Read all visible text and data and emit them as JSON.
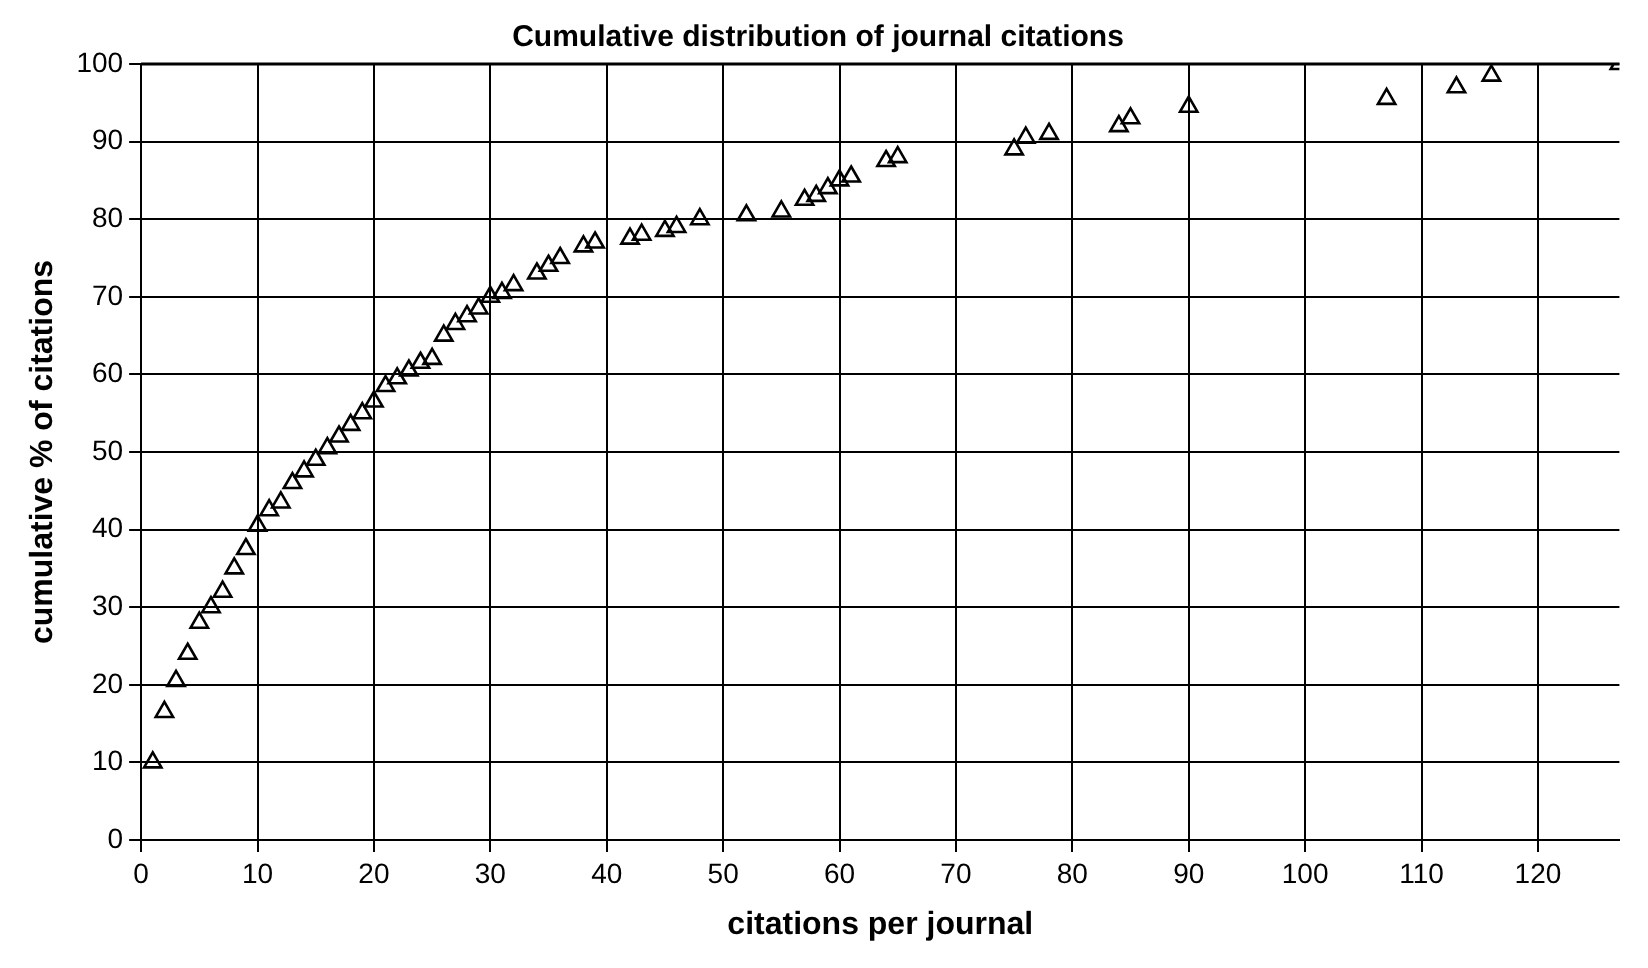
{
  "chart_data": {
    "type": "scatter",
    "title": "Cumulative distribution of journal citations",
    "xlabel": "citations per journal",
    "ylabel": "cumulative % of citations",
    "series": [
      {
        "color": "#000000",
        "x": [
          1,
          2,
          3,
          4,
          5,
          6,
          7,
          8,
          9,
          10,
          11,
          12,
          13,
          14,
          15,
          16,
          17,
          18,
          19,
          20,
          21,
          22,
          23,
          24,
          25,
          26,
          27,
          28,
          29,
          30,
          31,
          32,
          34,
          35,
          36,
          38,
          39,
          42,
          43,
          45,
          46,
          48,
          52,
          55,
          57,
          58,
          59,
          60,
          61,
          64,
          65,
          75,
          76,
          78,
          84,
          85,
          90,
          107,
          113,
          116,
          127
        ],
        "values": [
          10,
          16.5,
          20.5,
          24,
          28,
          30,
          32,
          35,
          37.5,
          40.5,
          42.5,
          43.5,
          46,
          47.5,
          49,
          50.5,
          52,
          53.5,
          55,
          56.5,
          58.5,
          59.5,
          60.5,
          61.5,
          62,
          65,
          66.5,
          67.5,
          68.5,
          70,
          70.5,
          71.5,
          73,
          74,
          75,
          76.5,
          77,
          77.5,
          78,
          78.5,
          79,
          80,
          80.5,
          81,
          82.5,
          83,
          84,
          85,
          85.5,
          87.5,
          88,
          89,
          90.5,
          91,
          92,
          93,
          94.5,
          95.5,
          97,
          98.5,
          100
        ]
      }
    ],
    "xlim": [
      0,
      127
    ],
    "xticks": [
      0,
      10,
      20,
      30,
      40,
      50,
      60,
      70,
      80,
      90,
      100,
      110,
      120
    ],
    "ylim": [
      0,
      100
    ],
    "yticks": [
      0,
      10,
      20,
      30,
      40,
      50,
      60,
      70,
      80,
      90,
      100
    ],
    "grid": true,
    "marker": "triangle",
    "legend": false
  }
}
